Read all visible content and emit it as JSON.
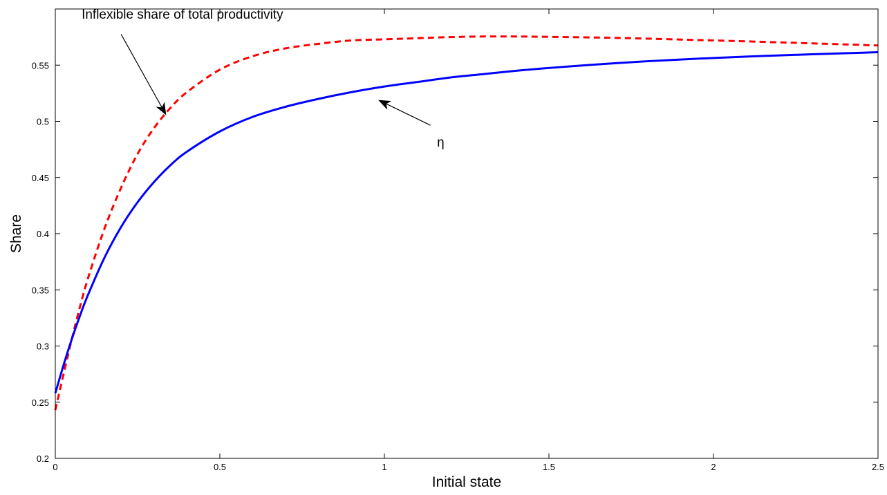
{
  "chart_data": {
    "type": "line",
    "title": "",
    "xlabel": "Initial state",
    "ylabel": "Share",
    "xlim": [
      0,
      2.5
    ],
    "ylim": [
      0.2,
      0.6
    ],
    "xticks": [
      0,
      0.5,
      1,
      1.5,
      2,
      2.5
    ],
    "xtick_labels": [
      "0",
      "0.5",
      "1",
      "1.5",
      "2",
      "2.5"
    ],
    "yticks": [
      0.2,
      0.25,
      0.3,
      0.35,
      0.4,
      0.45,
      0.5,
      0.55
    ],
    "ytick_labels": [
      "0.2",
      "0.25",
      "0.3",
      "0.35",
      "0.4",
      "0.45",
      "0.5",
      "0.55"
    ],
    "grid": false,
    "legend": "none",
    "series": [
      {
        "key": "inflexible",
        "color": "#ff0000",
        "line_style": "dashed",
        "x": [
          0,
          0.025,
          0.05,
          0.075,
          0.1,
          0.15,
          0.2,
          0.25,
          0.3,
          0.35,
          0.4,
          0.5,
          0.6,
          0.7,
          0.8,
          0.9,
          1.0,
          1.1,
          1.2,
          1.3,
          1.4,
          1.5,
          1.6,
          1.7,
          1.8,
          1.9,
          2.0,
          2.1,
          2.2,
          2.3,
          2.4,
          2.5
        ],
        "y": [
          0.243,
          0.275,
          0.306,
          0.335,
          0.361,
          0.405,
          0.441,
          0.471,
          0.494,
          0.512,
          0.526,
          0.546,
          0.558,
          0.565,
          0.569,
          0.572,
          0.573,
          0.574,
          0.575,
          0.5755,
          0.5755,
          0.5752,
          0.5748,
          0.5743,
          0.5736,
          0.5728,
          0.572,
          0.5712,
          0.5703,
          0.5694,
          0.5685,
          0.5675
        ]
      },
      {
        "key": "eta",
        "color": "#0000ff",
        "line_style": "solid",
        "x": [
          0,
          0.025,
          0.05,
          0.075,
          0.1,
          0.15,
          0.2,
          0.25,
          0.3,
          0.35,
          0.4,
          0.5,
          0.6,
          0.7,
          0.8,
          0.9,
          1.0,
          1.1,
          1.2,
          1.3,
          1.4,
          1.5,
          1.6,
          1.7,
          1.8,
          1.9,
          2.0,
          2.1,
          2.2,
          2.3,
          2.4,
          2.5
        ],
        "y": [
          0.258,
          0.283,
          0.306,
          0.327,
          0.346,
          0.379,
          0.406,
          0.428,
          0.446,
          0.461,
          0.473,
          0.491,
          0.504,
          0.513,
          0.52,
          0.526,
          0.531,
          0.535,
          0.539,
          0.542,
          0.545,
          0.5475,
          0.5497,
          0.5517,
          0.5535,
          0.555,
          0.5564,
          0.5576,
          0.5587,
          0.5597,
          0.5606,
          0.5615
        ]
      }
    ],
    "annotations": [
      {
        "key": "inflexible",
        "text": "Inflexible share of total productivity",
        "text_x": 0.08,
        "text_y": 0.5915,
        "arrow_from": [
          0.2,
          0.5775
        ],
        "arrow_to": [
          0.335,
          0.5065
        ]
      },
      {
        "key": "eta",
        "text": "η",
        "text_x": 1.16,
        "text_y": 0.4775,
        "arrow_from": [
          1.14,
          0.4965
        ],
        "arrow_to": [
          0.985,
          0.5185
        ]
      }
    ]
  }
}
